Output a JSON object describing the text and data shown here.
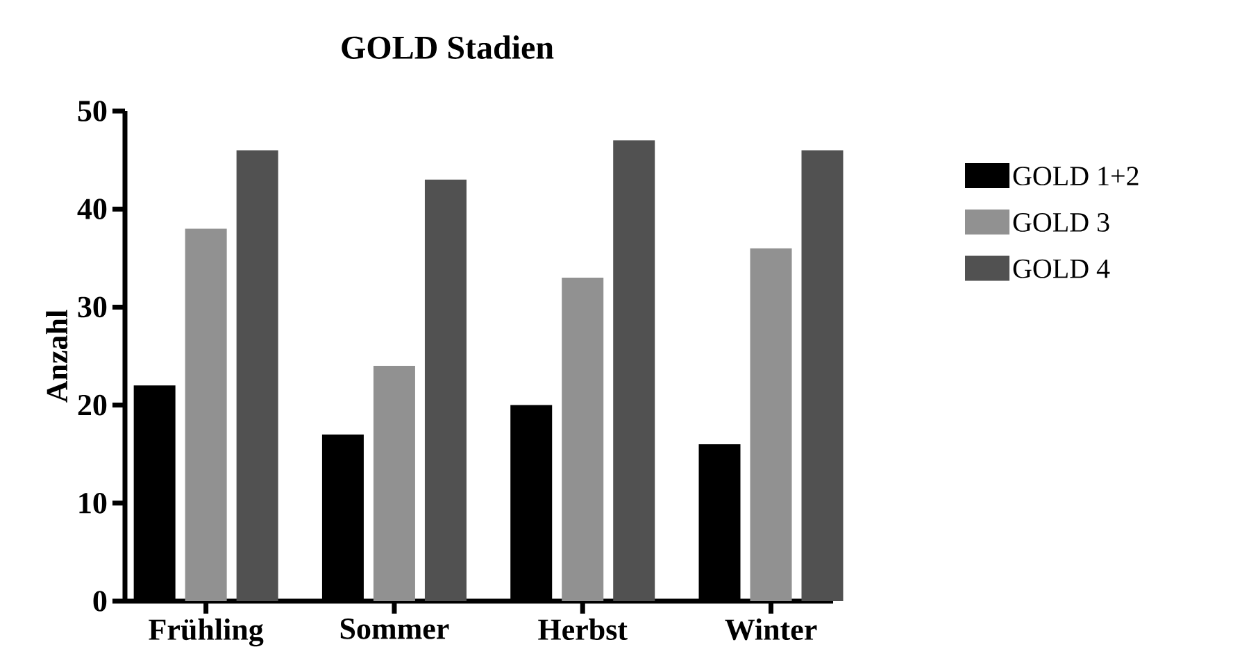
{
  "chart_data": {
    "type": "bar",
    "title": "GOLD Stadien",
    "ylabel": "Anzahl",
    "categories": [
      "Frühling",
      "Sommer",
      "Herbst",
      "Winter"
    ],
    "series": [
      {
        "name": "GOLD 1+2",
        "color": "#000000",
        "values": [
          22,
          17,
          20,
          16
        ]
      },
      {
        "name": "GOLD 3",
        "color": "#919191",
        "values": [
          38,
          24,
          33,
          36
        ]
      },
      {
        "name": "GOLD 4",
        "color": "#515151",
        "values": [
          46,
          43,
          47,
          46
        ]
      }
    ],
    "ylim": [
      0,
      50
    ],
    "yticks": [
      0,
      10,
      20,
      30,
      40,
      50
    ],
    "legend": "right"
  }
}
